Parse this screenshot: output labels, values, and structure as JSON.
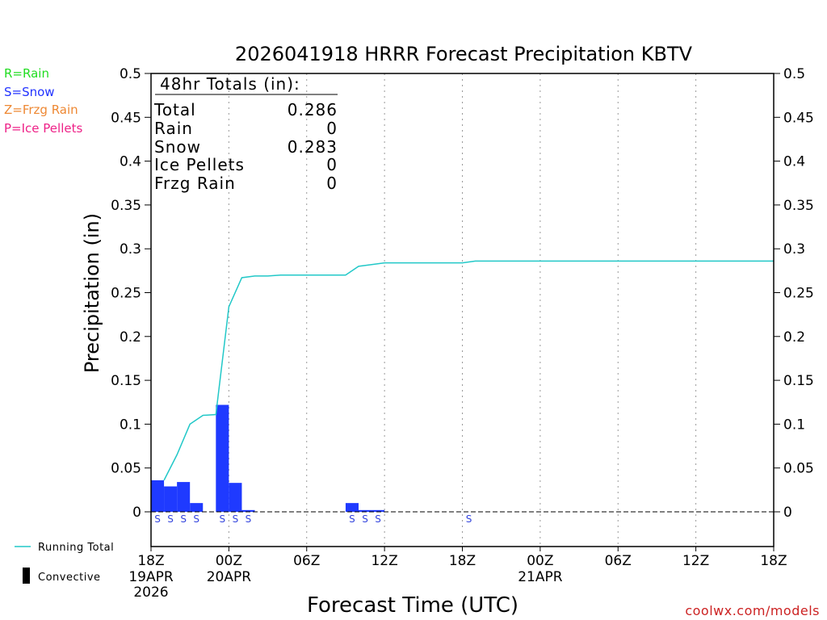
{
  "chart_data": {
    "type": "bar",
    "title": "2026041918 HRRR Forecast Precipitation KBTV",
    "xlabel": "Forecast Time (UTC)",
    "ylabel": "Precipitation (in)",
    "ylim": [
      0,
      0.5
    ],
    "yticks": [
      0,
      0.05,
      0.1,
      0.15,
      0.2,
      0.25,
      0.3,
      0.35,
      0.4,
      0.45,
      0.5
    ],
    "xlim_hours": [
      0,
      48
    ],
    "xticks": [
      {
        "h": 0,
        "label": "18Z",
        "sub1": "19APR",
        "sub2": "2026"
      },
      {
        "h": 6,
        "label": "00Z",
        "sub1": "20APR",
        "sub2": ""
      },
      {
        "h": 12,
        "label": "06Z",
        "sub1": "",
        "sub2": ""
      },
      {
        "h": 18,
        "label": "12Z",
        "sub1": "",
        "sub2": ""
      },
      {
        "h": 24,
        "label": "18Z",
        "sub1": "",
        "sub2": ""
      },
      {
        "h": 30,
        "label": "00Z",
        "sub1": "21APR",
        "sub2": ""
      },
      {
        "h": 36,
        "label": "06Z",
        "sub1": "",
        "sub2": ""
      },
      {
        "h": 42,
        "label": "12Z",
        "sub1": "",
        "sub2": ""
      },
      {
        "h": 48,
        "label": "18Z",
        "sub1": "",
        "sub2": ""
      }
    ],
    "hourly_precip": [
      {
        "h": 1,
        "value": 0.036
      },
      {
        "h": 2,
        "value": 0.029
      },
      {
        "h": 3,
        "value": 0.034
      },
      {
        "h": 4,
        "value": 0.01
      },
      {
        "h": 6,
        "value": 0.122
      },
      {
        "h": 7,
        "value": 0.033
      },
      {
        "h": 8,
        "value": 0.002
      },
      {
        "h": 16,
        "value": 0.01
      },
      {
        "h": 17,
        "value": 0.002
      },
      {
        "h": 18,
        "value": 0.002
      }
    ],
    "running_total": [
      [
        1,
        0.036
      ],
      [
        2,
        0.065
      ],
      [
        3,
        0.1
      ],
      [
        4,
        0.11
      ],
      [
        5,
        0.111
      ],
      [
        6,
        0.234
      ],
      [
        7,
        0.267
      ],
      [
        8,
        0.269
      ],
      [
        9,
        0.269
      ],
      [
        10,
        0.27
      ],
      [
        15,
        0.27
      ],
      [
        16,
        0.28
      ],
      [
        17,
        0.282
      ],
      [
        18,
        0.284
      ],
      [
        24,
        0.284
      ],
      [
        25,
        0.286
      ],
      [
        48,
        0.286
      ]
    ],
    "ptype_markers": [
      {
        "h": 1,
        "label": "S"
      },
      {
        "h": 2,
        "label": "S"
      },
      {
        "h": 3,
        "label": "S"
      },
      {
        "h": 4,
        "label": "S"
      },
      {
        "h": 6,
        "label": "S"
      },
      {
        "h": 7,
        "label": "S"
      },
      {
        "h": 8,
        "label": "S"
      },
      {
        "h": 16,
        "label": "S"
      },
      {
        "h": 17,
        "label": "S"
      },
      {
        "h": 18,
        "label": "S"
      },
      {
        "h": 25,
        "label": "S"
      }
    ],
    "totals": {
      "heading": "48hr Totals (in):",
      "rows": [
        {
          "label": "Total",
          "value": "0.286"
        },
        {
          "label": "Rain",
          "value": "0"
        },
        {
          "label": "Snow",
          "value": "0.283"
        },
        {
          "label": "Ice Pellets",
          "value": "0"
        },
        {
          "label": "Frzg Rain",
          "value": "0"
        }
      ]
    },
    "ptype_legend": [
      {
        "text": "R=Rain",
        "color": "#22dd22"
      },
      {
        "text": "S=Snow",
        "color": "#2233ff"
      },
      {
        "text": "Z=Frzg Rain",
        "color": "#ee8833"
      },
      {
        "text": "P=Ice Pellets",
        "color": "#ee2288"
      }
    ],
    "series_legend": {
      "running_total": "Running Total",
      "convective": "Convective"
    },
    "colors": {
      "bar": "#1f3aff",
      "running_total": "#22c8c8",
      "marker": "#3344dd",
      "credit": "#cc2222"
    },
    "credit": "coolwx.com/models"
  }
}
